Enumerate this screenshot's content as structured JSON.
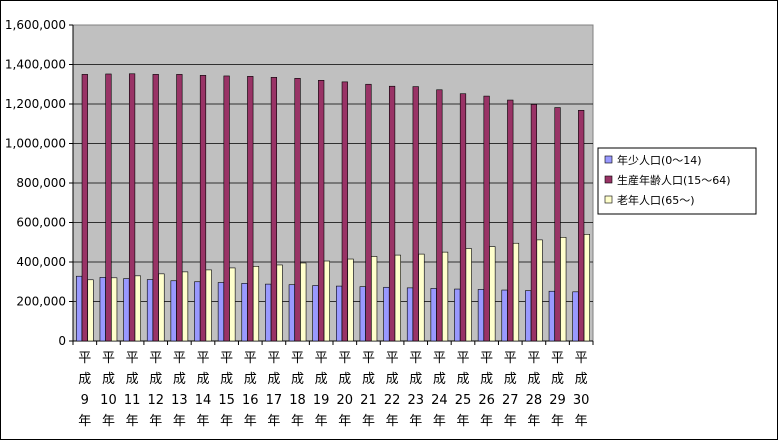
{
  "chart_data": {
    "type": "bar",
    "categories": [
      [
        "平",
        "成",
        "9",
        "年"
      ],
      [
        "平",
        "成",
        "10",
        "年"
      ],
      [
        "平",
        "成",
        "11",
        "年"
      ],
      [
        "平",
        "成",
        "12",
        "年"
      ],
      [
        "平",
        "成",
        "13",
        "年"
      ],
      [
        "平",
        "成",
        "14",
        "年"
      ],
      [
        "平",
        "成",
        "15",
        "年"
      ],
      [
        "平",
        "成",
        "16",
        "年"
      ],
      [
        "平",
        "成",
        "17",
        "年"
      ],
      [
        "平",
        "成",
        "18",
        "年"
      ],
      [
        "平",
        "成",
        "19",
        "年"
      ],
      [
        "平",
        "成",
        "20",
        "年"
      ],
      [
        "平",
        "成",
        "21",
        "年"
      ],
      [
        "平",
        "成",
        "22",
        "年"
      ],
      [
        "平",
        "成",
        "23",
        "年"
      ],
      [
        "平",
        "成",
        "24",
        "年"
      ],
      [
        "平",
        "成",
        "25",
        "年"
      ],
      [
        "平",
        "成",
        "26",
        "年"
      ],
      [
        "平",
        "成",
        "27",
        "年"
      ],
      [
        "平",
        "成",
        "28",
        "年"
      ],
      [
        "平",
        "成",
        "29",
        "年"
      ],
      [
        "平",
        "成",
        "30",
        "年"
      ]
    ],
    "series": [
      {
        "name": "年少人口(0～14)",
        "color": "#9999ff",
        "values": [
          328000,
          322000,
          316000,
          311000,
          305000,
          300000,
          296000,
          292000,
          288000,
          285000,
          281000,
          278000,
          275000,
          272000,
          269000,
          266000,
          263000,
          261000,
          258000,
          255000,
          252000,
          249000
        ]
      },
      {
        "name": "生産年齢人口(15～64)",
        "color": "#993366",
        "values": [
          1350000,
          1352000,
          1353000,
          1350000,
          1350000,
          1345000,
          1342000,
          1340000,
          1335000,
          1330000,
          1320000,
          1312000,
          1300000,
          1290000,
          1288000,
          1272000,
          1252000,
          1240000,
          1220000,
          1198000,
          1182000,
          1168000
        ]
      },
      {
        "name": "老年人口(65～)",
        "color": "#ffffcc",
        "values": [
          310000,
          320000,
          330000,
          340000,
          350000,
          360000,
          370000,
          378000,
          385000,
          395000,
          405000,
          415000,
          428000,
          435000,
          440000,
          450000,
          468000,
          478000,
          495000,
          512000,
          525000,
          540000
        ]
      }
    ],
    "y_ticks": [
      "0",
      "200,000",
      "400,000",
      "600,000",
      "800,000",
      "1,000,000",
      "1,200,000",
      "1,400,000",
      "1,600,000"
    ],
    "ylim": [
      0,
      1600000
    ],
    "y_step": 200000,
    "plot_background": "#c0c0c0",
    "grid": true,
    "legend_position": "right"
  }
}
